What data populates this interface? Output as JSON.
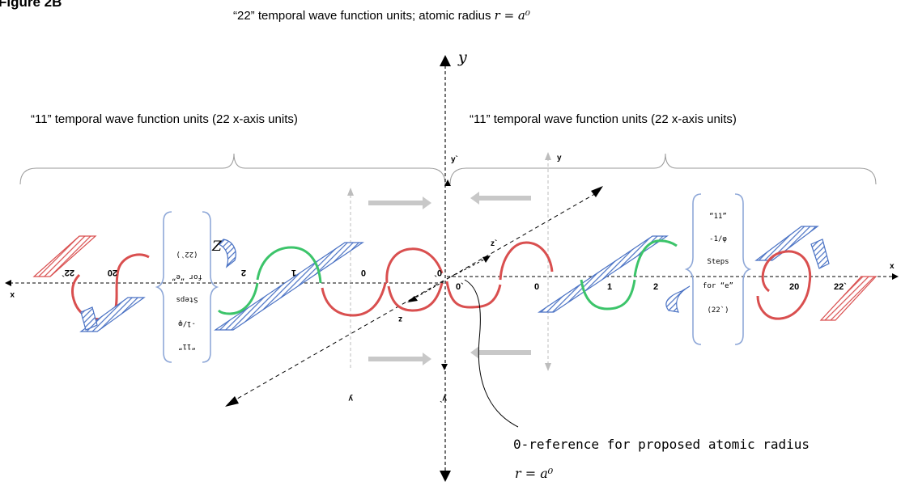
{
  "figure_label": "Figure 2B",
  "top_caption": {
    "text": "“22” temporal wave function units; atomic radius ",
    "formula": "r = a⁰"
  },
  "left_span_caption": "“11” temporal wave function units (22 x-axis units)",
  "right_span_caption": "“11” temporal wave function units (22 x-axis units)",
  "axis_labels": {
    "main_y": "y",
    "y_prime_top": "y`",
    "y_right": "y",
    "y_left_bottom": "y",
    "y_prime_bottom": "y`",
    "x_left": "x",
    "x_right": "x",
    "z_left": "Z",
    "z_prime": "z`",
    "z_small": "z"
  },
  "right_ticks": [
    "0`",
    "0",
    "1",
    "2",
    "20",
    "22`"
  ],
  "left_ticks": [
    "0`",
    "0",
    "1",
    "2",
    "20",
    "22`"
  ],
  "right_bracket_lines": [
    "“11”",
    "-1/φ",
    "Steps",
    "for “e”",
    "(22`)"
  ],
  "left_bracket_lines": [
    "“11”",
    "-1/φ",
    "Steps",
    "for “e”",
    "(22`)"
  ],
  "reference_note": {
    "text": "0-reference for proposed atomic radius",
    "formula": "r = a⁰"
  },
  "colors": {
    "red": "#d94f4f",
    "blue": "#4a72c4",
    "green": "#3cc46a",
    "bracket_blue": "#8fa8d8",
    "gray": "#bdbdbd"
  }
}
